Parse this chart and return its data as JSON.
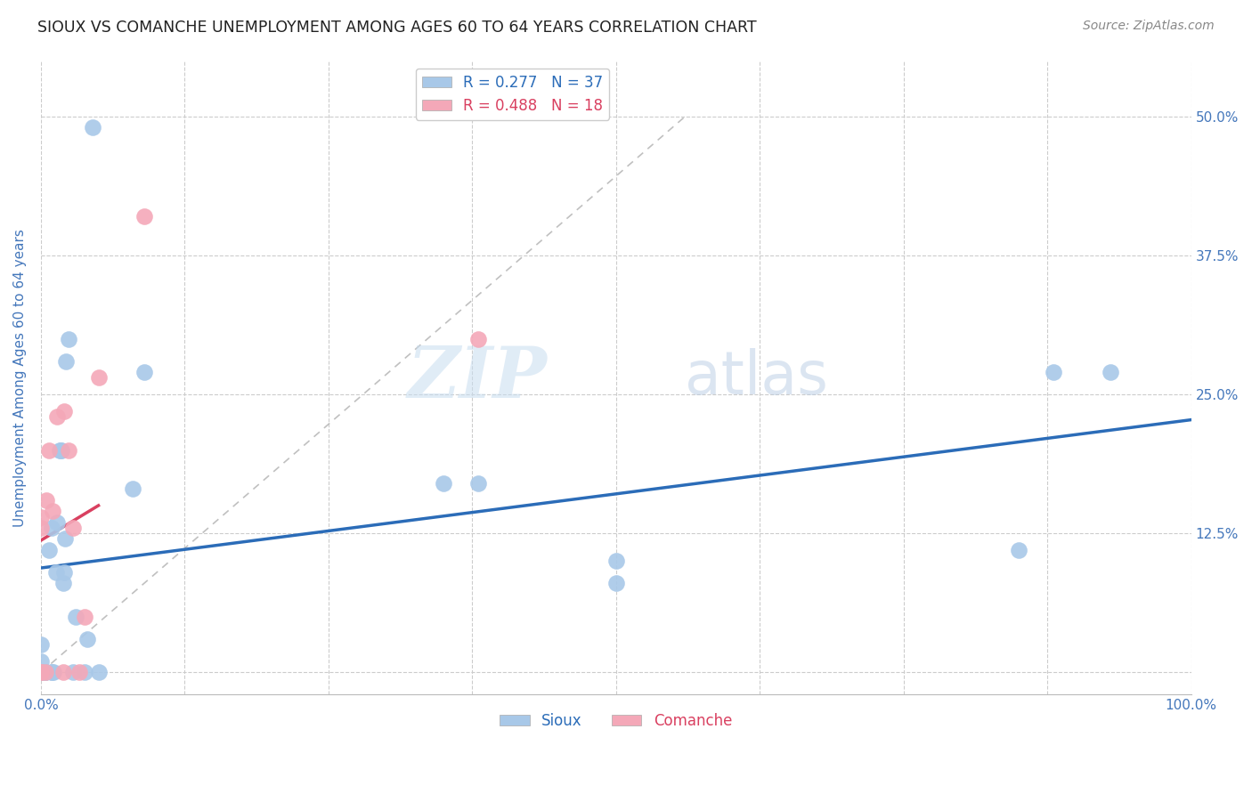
{
  "title": "SIOUX VS COMANCHE UNEMPLOYMENT AMONG AGES 60 TO 64 YEARS CORRELATION CHART",
  "source": "Source: ZipAtlas.com",
  "ylabel": "Unemployment Among Ages 60 to 64 years",
  "xlim": [
    0.0,
    1.0
  ],
  "ylim": [
    -0.02,
    0.55
  ],
  "xticks": [
    0.0,
    0.125,
    0.25,
    0.375,
    0.5,
    0.625,
    0.75,
    0.875,
    1.0
  ],
  "xticklabels": [
    "0.0%",
    "",
    "",
    "",
    "",
    "",
    "",
    "",
    "100.0%"
  ],
  "yticks": [
    0.0,
    0.125,
    0.25,
    0.375,
    0.5
  ],
  "yticklabels": [
    "",
    "12.5%",
    "25.0%",
    "37.5%",
    "50.0%"
  ],
  "sioux_R": 0.277,
  "sioux_N": 37,
  "comanche_R": 0.488,
  "comanche_N": 18,
  "sioux_color": "#a8c8e8",
  "comanche_color": "#f4a8b8",
  "sioux_line_color": "#2b6cb8",
  "comanche_line_color": "#d94060",
  "diagonal_color": "#c0c0c0",
  "watermark_zip": "ZIP",
  "watermark_atlas": "atlas",
  "sioux_x": [
    0.0,
    0.0,
    0.0,
    0.0,
    0.0,
    0.004,
    0.004,
    0.007,
    0.009,
    0.009,
    0.009,
    0.011,
    0.013,
    0.014,
    0.016,
    0.017,
    0.018,
    0.019,
    0.02,
    0.021,
    0.022,
    0.024,
    0.028,
    0.03,
    0.038,
    0.04,
    0.045,
    0.05,
    0.08,
    0.09,
    0.35,
    0.38,
    0.5,
    0.5,
    0.85,
    0.88,
    0.93
  ],
  "sioux_y": [
    0.0,
    0.0,
    0.0,
    0.01,
    0.025,
    0.0,
    0.0,
    0.11,
    0.0,
    0.0,
    0.13,
    0.0,
    0.09,
    0.135,
    0.2,
    0.2,
    0.2,
    0.08,
    0.09,
    0.12,
    0.28,
    0.3,
    0.0,
    0.05,
    0.0,
    0.03,
    0.49,
    0.0,
    0.165,
    0.27,
    0.17,
    0.17,
    0.08,
    0.1,
    0.11,
    0.27,
    0.27
  ],
  "comanche_x": [
    0.0,
    0.0,
    0.0,
    0.0,
    0.004,
    0.005,
    0.007,
    0.01,
    0.014,
    0.019,
    0.02,
    0.024,
    0.028,
    0.033,
    0.038,
    0.05,
    0.09,
    0.38
  ],
  "comanche_y": [
    0.0,
    0.0,
    0.13,
    0.14,
    0.0,
    0.155,
    0.2,
    0.145,
    0.23,
    0.0,
    0.235,
    0.2,
    0.13,
    0.0,
    0.05,
    0.265,
    0.41,
    0.3
  ],
  "background_color": "#ffffff",
  "grid_color": "#cccccc",
  "title_color": "#222222",
  "tick_color": "#4477bb",
  "ylabel_color": "#4477bb",
  "title_fontsize": 12.5,
  "label_fontsize": 11,
  "tick_fontsize": 11,
  "legend_fontsize": 12,
  "source_fontsize": 10
}
